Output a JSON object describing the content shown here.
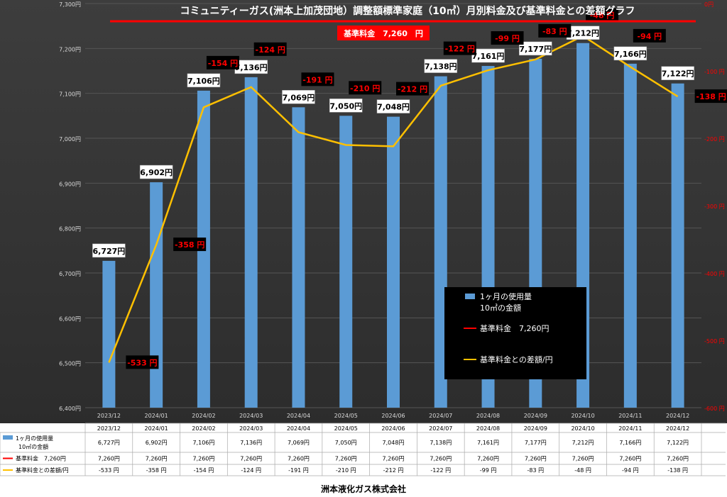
{
  "footer": {
    "company": "洲本液化ガス株式会社"
  },
  "chart_data": {
    "type": "bar",
    "title": "コミュニティーガス(洲本上加茂団地）調整額標準家庭（10㎥）月別料金及び基準料金との差額グラフ",
    "standard_box": "基準料金　7,260　円",
    "categories": [
      "2023/12",
      "2024/01",
      "2024/02",
      "2024/03",
      "2024/04",
      "2024/05",
      "2024/06",
      "2024/07",
      "2024/08",
      "2024/09",
      "2024/10",
      "2024/11",
      "2024/12"
    ],
    "series": [
      {
        "name": "1ヶ月の使用量 10㎥の金額",
        "type": "bar",
        "axis": "left",
        "color": "#5b9bd5",
        "values": [
          6727,
          6902,
          7106,
          7136,
          7069,
          7050,
          7048,
          7138,
          7161,
          7177,
          7212,
          7166,
          7122
        ],
        "labels": [
          "6,727円",
          "6,902円",
          "7,106円",
          "7,136円",
          "7,069円",
          "7,050円",
          "7,048円",
          "7,138円",
          "7,161円",
          "7,177円",
          "7,212円",
          "7,166円",
          "7,122円"
        ]
      },
      {
        "name": "基準料金　7,260円",
        "type": "line",
        "axis": "left",
        "color": "#ff0000",
        "values": [
          7260,
          7260,
          7260,
          7260,
          7260,
          7260,
          7260,
          7260,
          7260,
          7260,
          7260,
          7260,
          7260
        ],
        "labels": [
          "7,260円",
          "7,260円",
          "7,260円",
          "7,260円",
          "7,260円",
          "7,260円",
          "7,260円",
          "7,260円",
          "7,260円",
          "7,260円",
          "7,260円",
          "7,260円",
          "7,260円"
        ]
      },
      {
        "name": "基準料金との差額/円",
        "type": "line",
        "axis": "right",
        "color": "#ffc000",
        "values": [
          -533,
          -358,
          -154,
          -124,
          -191,
          -210,
          -212,
          -122,
          -99,
          -83,
          -48,
          -94,
          -138
        ],
        "labels": [
          "-533 円",
          "-358 円",
          "-154 円",
          "-124 円",
          "-191 円",
          "-210 円",
          "-212 円",
          "-122 円",
          "-99 円",
          "-83 円",
          "-48 円",
          "-94 円",
          "-138 円"
        ]
      }
    ],
    "y_left": {
      "ylim": [
        6400,
        7300
      ],
      "ticks": [
        "6,400円",
        "6,500円",
        "6,600円",
        "6,700円",
        "6,800円",
        "6,900円",
        "7,000円",
        "7,100円",
        "7,200円",
        "7,300円"
      ]
    },
    "y_right": {
      "ylim": [
        -600,
        0
      ],
      "ticks": [
        "0円",
        "-100 円",
        "-200 円",
        "-300 円",
        "-400 円",
        "-500 円",
        "-600 円"
      ]
    },
    "legend": {
      "placement": "center-right",
      "items": [
        "1ヶ月の使用量",
        "10㎥の金額",
        "基準料金　7,260円",
        "基準料金との差額/円"
      ]
    },
    "table": {
      "rows": [
        {
          "label": [
            "1ヶ月の使用量",
            "10㎥の金額"
          ],
          "color": "#5b9bd5",
          "values": [
            "6,727円",
            "6,902円",
            "7,106円",
            "7,136円",
            "7,069円",
            "7,050円",
            "7,048円",
            "7,138円",
            "7,161円",
            "7,177円",
            "7,212円",
            "7,166円",
            "7,122円"
          ]
        },
        {
          "label": [
            "基準料金　7,260円"
          ],
          "color": "#ff0000",
          "values": [
            "7,260円",
            "7,260円",
            "7,260円",
            "7,260円",
            "7,260円",
            "7,260円",
            "7,260円",
            "7,260円",
            "7,260円",
            "7,260円",
            "7,260円",
            "7,260円",
            "7,260円"
          ]
        },
        {
          "label": [
            "基準料金との差額/円"
          ],
          "color": "#ffc000",
          "values": [
            "-533 円",
            "-358 円",
            "-154 円",
            "-124 円",
            "-191 円",
            "-210 円",
            "-212 円",
            "-122 円",
            "-99 円",
            "-83 円",
            "-48 円",
            "-94 円",
            "-138 円"
          ]
        }
      ]
    },
    "grid": true
  }
}
